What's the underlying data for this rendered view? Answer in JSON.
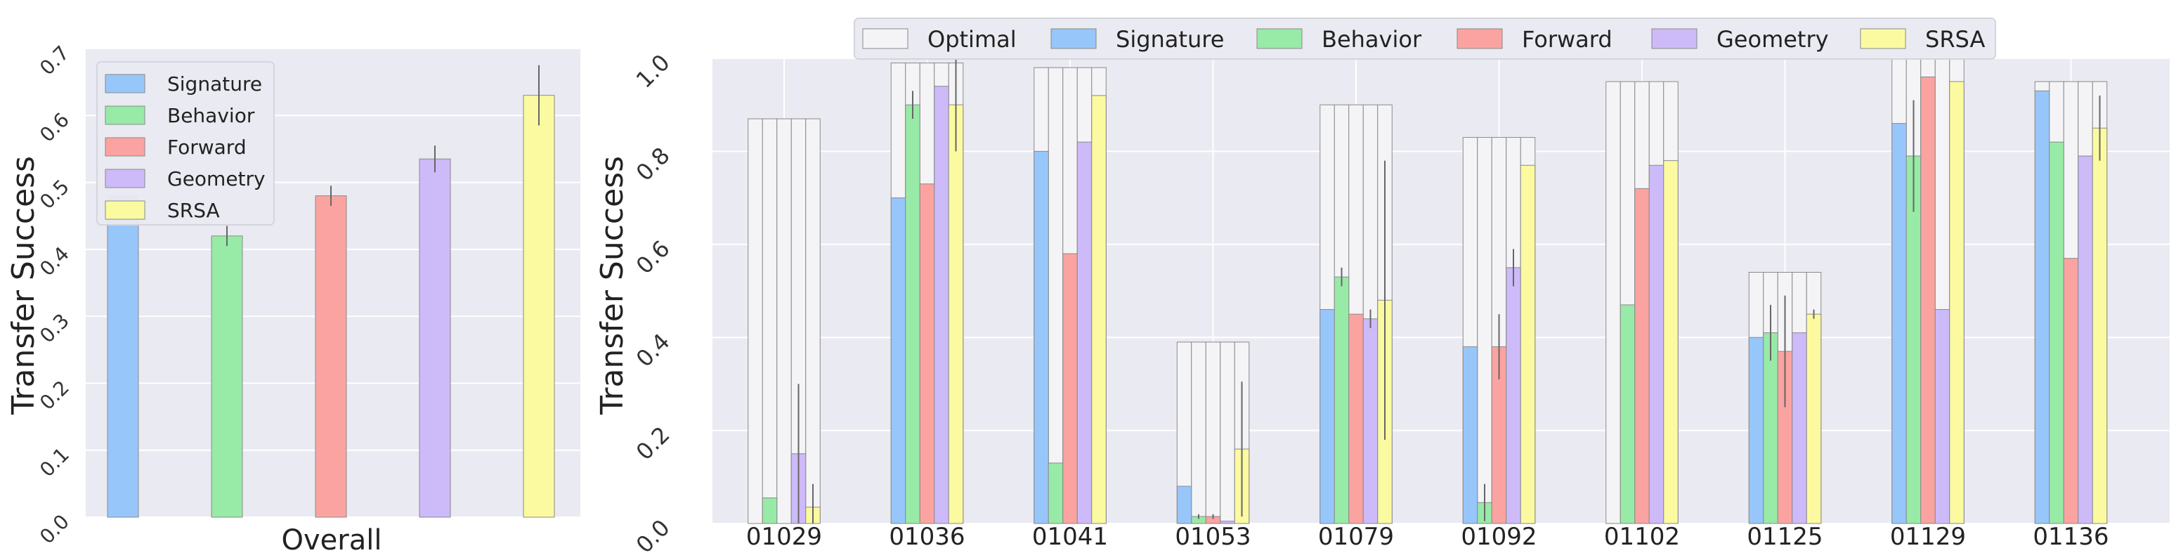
{
  "colors": {
    "Optimal": "#f4f4f7",
    "Signature": "#97c6fa",
    "Behavior": "#98eaa7",
    "Forward": "#fba3a0",
    "Geometry": "#cdbaf9",
    "SRSA": "#fbfaa0",
    "plot_bg": "#eaeaf2",
    "edge": "#8a8a8a",
    "errbar": "#666666"
  },
  "chart_data": [
    {
      "type": "bar",
      "ylabel": "Transfer Success",
      "xlabel": "Overall",
      "ylim": [
        0,
        0.7
      ],
      "yticks": [
        "0.0",
        "0.1",
        "0.2",
        "0.3",
        "0.4",
        "0.5",
        "0.6",
        "0.7"
      ],
      "grid": true,
      "legend_position": "top-left",
      "legend": [
        "Signature",
        "Behavior",
        "Forward",
        "Geometry",
        "SRSA"
      ],
      "series": [
        {
          "name": "Signature",
          "value": 0.48,
          "err": 0.0
        },
        {
          "name": "Behavior",
          "value": 0.42,
          "err": 0.015
        },
        {
          "name": "Forward",
          "value": 0.48,
          "err": 0.015
        },
        {
          "name": "Geometry",
          "value": 0.535,
          "err": 0.02
        },
        {
          "name": "SRSA",
          "value": 0.63,
          "err": 0.045
        }
      ]
    },
    {
      "type": "bar",
      "ylabel": "Transfer Success",
      "xlabel": "",
      "ylim": [
        0,
        1.0
      ],
      "yticks": [
        "0.0",
        "0.2",
        "0.4",
        "0.6",
        "0.8",
        "1.0"
      ],
      "grid": true,
      "legend_position": "top-center",
      "legend": [
        "Optimal",
        "Signature",
        "Behavior",
        "Forward",
        "Geometry",
        "SRSA"
      ],
      "categories": [
        "01029",
        "01036",
        "01041",
        "01053",
        "01079",
        "01092",
        "01102",
        "01125",
        "01129",
        "01136"
      ],
      "optimal": [
        0.87,
        0.99,
        0.98,
        0.39,
        0.9,
        0.83,
        0.95,
        0.54,
        1.0,
        0.95
      ],
      "series": [
        {
          "name": "Signature",
          "values": [
            0.0,
            0.7,
            0.8,
            0.08,
            0.46,
            0.38,
            0.0,
            0.4,
            0.86,
            0.93
          ],
          "err": [
            0,
            0,
            0,
            0,
            0,
            0,
            0,
            0,
            0,
            0
          ]
        },
        {
          "name": "Behavior",
          "values": [
            0.055,
            0.9,
            0.13,
            0.015,
            0.53,
            0.045,
            0.47,
            0.41,
            0.79,
            0.82
          ],
          "err": [
            0,
            0.03,
            0,
            0.005,
            0.02,
            0.04,
            0,
            0.06,
            0.12,
            0
          ]
        },
        {
          "name": "Forward",
          "values": [
            0.0,
            0.73,
            0.58,
            0.015,
            0.45,
            0.38,
            0.72,
            0.37,
            0.96,
            0.57
          ],
          "err": [
            0,
            0,
            0,
            0.005,
            0,
            0.07,
            0,
            0.12,
            0,
            0
          ]
        },
        {
          "name": "Geometry",
          "values": [
            0.15,
            0.94,
            0.82,
            0.005,
            0.44,
            0.55,
            0.77,
            0.41,
            0.46,
            0.79
          ],
          "err": [
            0.15,
            0,
            0,
            0,
            0.02,
            0.04,
            0,
            0,
            0,
            0
          ]
        },
        {
          "name": "SRSA",
          "values": [
            0.035,
            0.9,
            0.92,
            0.16,
            0.48,
            0.77,
            0.78,
            0.45,
            0.95,
            0.85
          ],
          "err": [
            0.05,
            0.1,
            0,
            0.145,
            0.3,
            0,
            0,
            0.01,
            0,
            0.07
          ]
        }
      ]
    }
  ]
}
